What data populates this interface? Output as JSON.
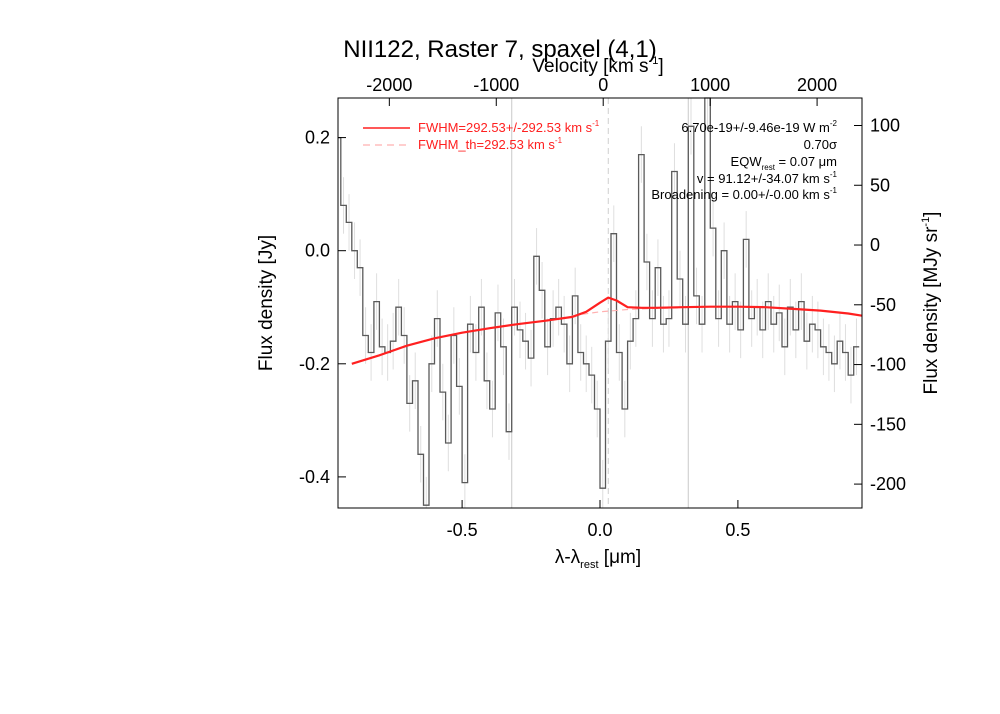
{
  "chart_data": {
    "type": "line",
    "title": "NII122, Raster 7, spaxel (4,1)",
    "xlabel": "λ-λ",
    "xlabel_sub": "rest",
    "xlabel_unit": " [μm]",
    "ylabel": "Flux density [Jy]",
    "top_xlabel": "Velocity [km s",
    "top_xlabel_sup": "-1",
    "top_xlabel_end": "]",
    "right_ylabel": "Flux density [MJy sr",
    "right_ylabel_sup": "-1",
    "right_ylabel_end": "]",
    "xlim": [
      -0.95,
      0.95
    ],
    "ylim": [
      -0.455,
      0.27
    ],
    "top_xlim": [
      -2480,
      2420
    ],
    "right_ylim": [
      -220,
      123
    ],
    "x_ticks": [
      -0.5,
      0.0,
      0.5
    ],
    "x_tick_labels": [
      "-0.5",
      "0.0",
      "0.5"
    ],
    "y_ticks": [
      -0.4,
      -0.2,
      0.0,
      0.2
    ],
    "y_tick_labels": [
      "-0.4",
      "-0.2",
      "0.0",
      "0.2"
    ],
    "top_ticks": [
      -2000,
      -1000,
      0,
      1000,
      2000
    ],
    "top_tick_labels": [
      "-2000",
      "-1000",
      "0",
      "1000",
      "2000"
    ],
    "right_ticks": [
      -200,
      -150,
      -100,
      -50,
      0,
      50,
      100
    ],
    "right_tick_labels": [
      "-200",
      "-150",
      "-100",
      "-50",
      "0",
      "50",
      "100"
    ],
    "vlines_solid": [
      -0.32,
      0.32
    ],
    "vline_dashed": 0.03,
    "spectrum": {
      "name": "data",
      "color": "#5a5a5a",
      "x": [
        -0.95,
        -0.93,
        -0.91,
        -0.89,
        -0.87,
        -0.85,
        -0.83,
        -0.81,
        -0.79,
        -0.77,
        -0.75,
        -0.73,
        -0.71,
        -0.69,
        -0.67,
        -0.65,
        -0.63,
        -0.61,
        -0.59,
        -0.57,
        -0.55,
        -0.53,
        -0.51,
        -0.49,
        -0.47,
        -0.45,
        -0.43,
        -0.41,
        -0.39,
        -0.37,
        -0.35,
        -0.33,
        -0.31,
        -0.29,
        -0.27,
        -0.25,
        -0.23,
        -0.21,
        -0.19,
        -0.17,
        -0.15,
        -0.13,
        -0.11,
        -0.09,
        -0.07,
        -0.05,
        -0.03,
        -0.01,
        0.01,
        0.03,
        0.05,
        0.07,
        0.09,
        0.11,
        0.13,
        0.15,
        0.17,
        0.19,
        0.21,
        0.23,
        0.25,
        0.27,
        0.29,
        0.31,
        0.33,
        0.35,
        0.37,
        0.39,
        0.41,
        0.43,
        0.45,
        0.47,
        0.49,
        0.51,
        0.53,
        0.55,
        0.57,
        0.59,
        0.61,
        0.63,
        0.65,
        0.67,
        0.69,
        0.71,
        0.73,
        0.75,
        0.77,
        0.79,
        0.81,
        0.83,
        0.85,
        0.87,
        0.89,
        0.91,
        0.93
      ],
      "y": [
        0.2,
        0.08,
        0.05,
        0.0,
        -0.03,
        -0.15,
        -0.18,
        -0.09,
        -0.17,
        -0.18,
        -0.16,
        -0.1,
        -0.15,
        -0.27,
        -0.23,
        -0.36,
        -0.45,
        -0.2,
        -0.12,
        -0.25,
        -0.34,
        -0.15,
        -0.24,
        -0.41,
        -0.13,
        -0.18,
        -0.1,
        -0.23,
        -0.28,
        -0.11,
        -0.17,
        -0.32,
        -0.1,
        -0.14,
        -0.16,
        -0.19,
        -0.01,
        -0.07,
        -0.17,
        -0.12,
        -0.1,
        -0.13,
        -0.2,
        -0.08,
        -0.18,
        -0.2,
        -0.22,
        -0.28,
        -0.42,
        -0.16,
        0.03,
        -0.18,
        -0.28,
        -0.16,
        -0.12,
        0.17,
        -0.02,
        -0.12,
        -0.03,
        -0.13,
        -0.12,
        0.14,
        -0.05,
        -0.13,
        0.22,
        -0.08,
        -0.13,
        0.27,
        0.04,
        -0.12,
        0.0,
        -0.13,
        -0.09,
        -0.14,
        0.02,
        -0.12,
        -0.1,
        -0.14,
        -0.09,
        -0.13,
        -0.11,
        -0.17,
        -0.1,
        -0.14,
        -0.09,
        -0.16,
        -0.13,
        -0.14,
        -0.17,
        -0.18,
        -0.2,
        -0.16,
        -0.18,
        -0.22,
        -0.17
      ],
      "errors": [
        0.05,
        0.05,
        0.05,
        0.05,
        0.05,
        0.05,
        0.05,
        0.05,
        0.05,
        0.05,
        0.05,
        0.05,
        0.05,
        0.05,
        0.05,
        0.05,
        0.05,
        0.05,
        0.05,
        0.05,
        0.05,
        0.05,
        0.05,
        0.05,
        0.05,
        0.05,
        0.05,
        0.05,
        0.05,
        0.05,
        0.05,
        0.05,
        0.05,
        0.05,
        0.05,
        0.05,
        0.05,
        0.05,
        0.05,
        0.05,
        0.05,
        0.05,
        0.05,
        0.05,
        0.05,
        0.05,
        0.05,
        0.05,
        0.05,
        0.05,
        0.05,
        0.05,
        0.05,
        0.05,
        0.05,
        0.05,
        0.05,
        0.05,
        0.05,
        0.05,
        0.05,
        0.05,
        0.05,
        0.05,
        0.05,
        0.05,
        0.05,
        0.05,
        0.05,
        0.05,
        0.05,
        0.05,
        0.05,
        0.05,
        0.05,
        0.05,
        0.05,
        0.05,
        0.05,
        0.05,
        0.05,
        0.05,
        0.05,
        0.05,
        0.05,
        0.05,
        0.05,
        0.05,
        0.05,
        0.05,
        0.05,
        0.05,
        0.05,
        0.05,
        0.05
      ]
    },
    "fit": {
      "name": "FWHM=292.53+/-292.53 km s",
      "name_sup": "-1",
      "color": "#ff2020",
      "x": [
        -0.9,
        -0.8,
        -0.7,
        -0.6,
        -0.5,
        -0.4,
        -0.3,
        -0.2,
        -0.1,
        -0.05,
        0.0,
        0.03,
        0.06,
        0.1,
        0.15,
        0.2,
        0.3,
        0.4,
        0.5,
        0.6,
        0.7,
        0.8,
        0.9,
        0.95
      ],
      "y": [
        -0.2,
        -0.185,
        -0.168,
        -0.155,
        -0.145,
        -0.137,
        -0.13,
        -0.124,
        -0.117,
        -0.108,
        -0.092,
        -0.083,
        -0.088,
        -0.1,
        -0.101,
        -0.101,
        -0.1,
        -0.099,
        -0.099,
        -0.1,
        -0.103,
        -0.106,
        -0.111,
        -0.115
      ]
    },
    "baseline": {
      "name": "FWHM_th=292.53 km s",
      "name_sup": "-1",
      "color": "#ffb0b0",
      "x": [
        -0.1,
        0.0,
        0.1,
        0.2,
        0.3
      ],
      "y": [
        -0.115,
        -0.108,
        -0.104,
        -0.102,
        -0.101
      ]
    },
    "annotations": {
      "flux": "6.70e-19+/-9.46e-19 W m",
      "flux_sup": "-2",
      "sigma": "0.70σ",
      "eqw": "EQW",
      "eqw_sub": "rest",
      "eqw_end": " = 0.07 μm",
      "velocity": "v = 91.12+/-34.07 km s",
      "velocity_sup": "-1",
      "broadening": "Broadening = 0.00+/-0.00 km s",
      "broadening_sup": "-1"
    },
    "grid": false,
    "legend_position": "top-left"
  }
}
